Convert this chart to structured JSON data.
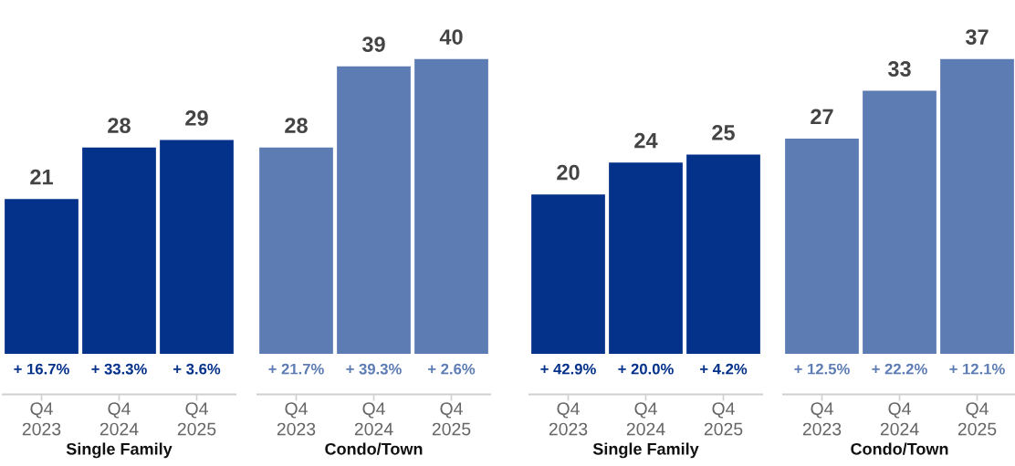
{
  "chart_data": [
    {
      "type": "bar",
      "xlabel": "Single Family",
      "categories": [
        "Q4\n2023",
        "Q4\n2024",
        "Q4\n2025"
      ],
      "data_labels": true,
      "tick_labels": "x",
      "grid": false,
      "series": [
        {
          "color": "#04318a",
          "values": [
            21,
            28,
            29
          ]
        }
      ],
      "annotations": [
        "+ 16.7%",
        "+ 33.3%",
        "+ 3.6%"
      ]
    },
    {
      "type": "bar",
      "xlabel": "Condo/Town",
      "categories": [
        "Q4\n2023",
        "Q4\n2024",
        "Q4\n2025"
      ],
      "data_labels": true,
      "tick_labels": "x",
      "grid": false,
      "series": [
        {
          "color": "#5d7cb4",
          "values": [
            28,
            39,
            40
          ]
        }
      ],
      "annotations": [
        "+ 21.7%",
        "+ 39.3%",
        "+ 2.6%"
      ]
    },
    {
      "type": "bar",
      "xlabel": "Single Family",
      "categories": [
        "Q4\n2023",
        "Q4\n2024",
        "Q4\n2025"
      ],
      "data_labels": true,
      "tick_labels": "x",
      "grid": false,
      "series": [
        {
          "color": "#04318a",
          "values": [
            20,
            24,
            25
          ]
        }
      ],
      "annotations": [
        "+ 42.9%",
        "+ 20.0%",
        "+ 4.2%"
      ]
    },
    {
      "type": "bar",
      "xlabel": "Condo/Town",
      "categories": [
        "Q4\n2023",
        "Q4\n2024",
        "Q4\n2025"
      ],
      "data_labels": true,
      "tick_labels": "x",
      "grid": false,
      "series": [
        {
          "color": "#5d7cb4",
          "values": [
            27,
            33,
            37
          ]
        }
      ],
      "annotations": [
        "+ 12.5%",
        "+ 22.2%",
        "+ 12.1%"
      ]
    }
  ]
}
